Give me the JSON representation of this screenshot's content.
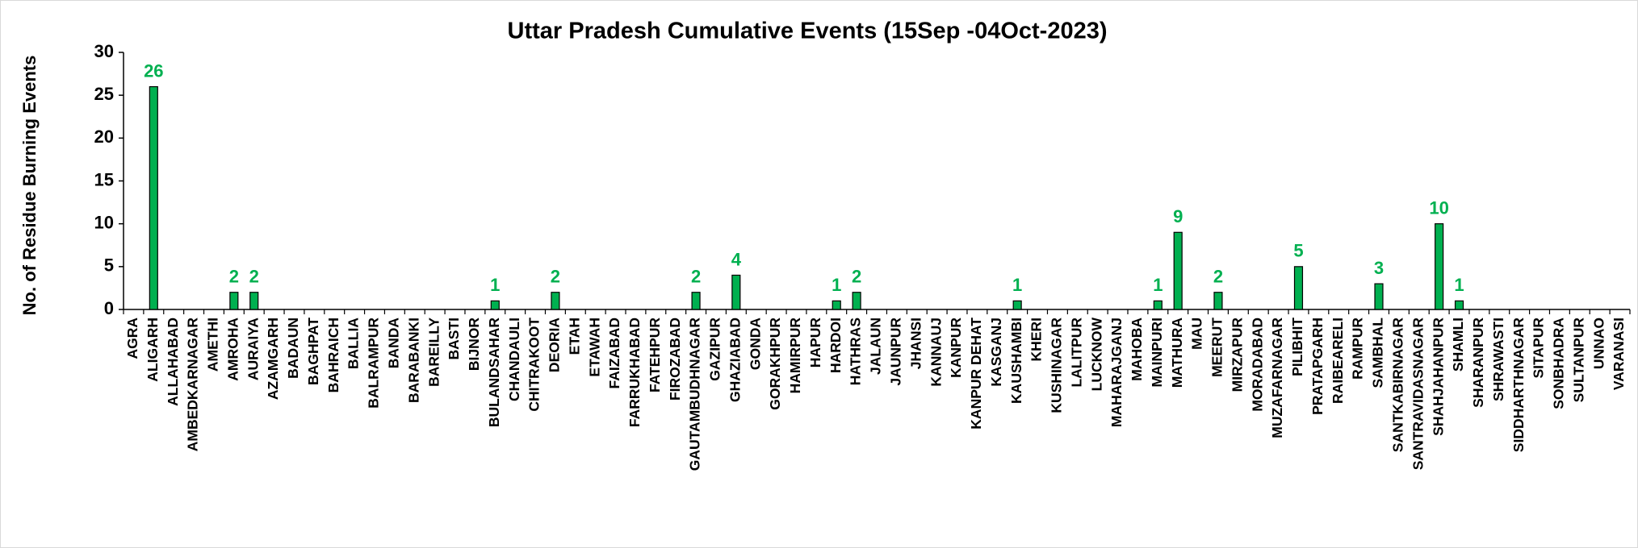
{
  "chart_data": {
    "type": "bar",
    "title": "Uttar Pradesh Cumulative Events (15Sep -04Oct-2023)",
    "y_label": "No. of Residue Burning Events",
    "categories": [
      "AGRA",
      "ALIGARH",
      "ALLAHABAD",
      "AMBEDKARNAGAR",
      "AMETHI",
      "AMROHA",
      "AURAIYA",
      "AZAMGARH",
      "BADAUN",
      "BAGHPAT",
      "BAHRAICH",
      "BALLIA",
      "BALRAMPUR",
      "BANDA",
      "BARABANKI",
      "BAREILLY",
      "BASTI",
      "BIJNOR",
      "BULANDSAHAR",
      "CHANDAULI",
      "CHITRAKOOT",
      "DEORIA",
      "ETAH",
      "ETAWAH",
      "FAIZABAD",
      "FARRUKHABAD",
      "FATEHPUR",
      "FIROZABAD",
      "GAUTAMBUDHNAGAR",
      "GAZIPUR",
      "GHAZIABAD",
      "GONDA",
      "GORAKHPUR",
      "HAMIRPUR",
      "HAPUR",
      "HARDOI",
      "HATHRAS",
      "JALAUN",
      "JAUNPUR",
      "JHANSI",
      "KANNAUJ",
      "KANPUR",
      "KANPUR DEHAT",
      "KASGANJ",
      "KAUSHAMBI",
      "KHERI",
      "KUSHINAGAR",
      "LALITPUR",
      "LUCKNOW",
      "MAHARAJGANJ",
      "MAHOBA",
      "MAINPURI",
      "MATHURA",
      "MAU",
      "MEERUT",
      "MIRZAPUR",
      "MORADABAD",
      "MUZAFARNAGAR",
      "PILIBHIT",
      "PRATAPGARH",
      "RAIBEARELI",
      "RAMPUR",
      "SAMBHAL",
      "SANTKABIRNAGAR",
      "SANTRAVIDASNAGAR",
      "SHAHJAHANPUR",
      "SHAMLI",
      "SHARANPUR",
      "SHRAWASTI",
      "SIDDHARTHNAGAR",
      "SITAPUR",
      "SONBHADRA",
      "SULTANPUR",
      "UNNAO",
      "VARANASI"
    ],
    "values": [
      0,
      26,
      0,
      0,
      0,
      2,
      2,
      0,
      0,
      0,
      0,
      0,
      0,
      0,
      0,
      0,
      0,
      0,
      1,
      0,
      0,
      2,
      0,
      0,
      0,
      0,
      0,
      0,
      2,
      0,
      4,
      0,
      0,
      0,
      0,
      1,
      2,
      0,
      0,
      0,
      0,
      0,
      0,
      0,
      1,
      0,
      0,
      0,
      0,
      0,
      0,
      1,
      9,
      0,
      2,
      0,
      0,
      0,
      5,
      0,
      0,
      0,
      3,
      0,
      0,
      10,
      1,
      0,
      0,
      0,
      0,
      0,
      0,
      0,
      0
    ],
    "value_labels": [
      null,
      26,
      null,
      null,
      null,
      2,
      2,
      null,
      null,
      null,
      null,
      null,
      null,
      null,
      null,
      null,
      null,
      null,
      1,
      null,
      null,
      2,
      null,
      null,
      null,
      null,
      null,
      null,
      2,
      null,
      4,
      null,
      null,
      null,
      null,
      1,
      2,
      null,
      null,
      null,
      null,
      null,
      null,
      null,
      1,
      null,
      null,
      null,
      null,
      null,
      null,
      1,
      9,
      null,
      2,
      null,
      null,
      null,
      5,
      null,
      null,
      null,
      3,
      null,
      null,
      10,
      1,
      null,
      null,
      null,
      null,
      null,
      null,
      null,
      null
    ],
    "color": "#00b050",
    "ylim": [
      0,
      30
    ],
    "yticks": [
      0,
      5,
      10,
      15,
      20,
      25,
      30
    ],
    "grid": false
  }
}
